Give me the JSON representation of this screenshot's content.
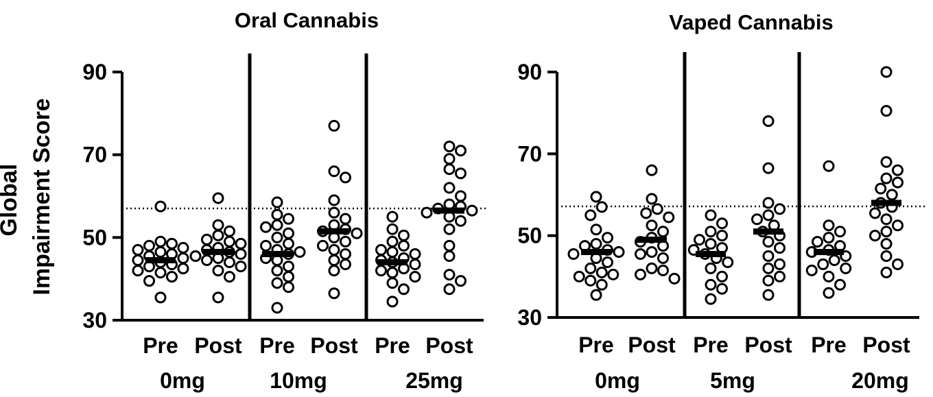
{
  "ylabel_lines": [
    "Global",
    "Impairment Score"
  ],
  "chart_data": [
    {
      "type": "scatter",
      "title": "Oral Cannabis",
      "ylim": [
        30,
        90
      ],
      "yticks": [
        30,
        50,
        70,
        90
      ],
      "reference_line": 57,
      "categories": [
        "Pre",
        "Post",
        "Pre",
        "Post",
        "Pre",
        "Post"
      ],
      "dose_labels": [
        "0mg",
        "10mg",
        "25mg"
      ],
      "series": [
        {
          "values": [
            57.5,
            49,
            48.5,
            48,
            47.5,
            47,
            46.5,
            46,
            45.5,
            45,
            44.5,
            44,
            43.5,
            43,
            42.5,
            42,
            41.5,
            40.5,
            39.5,
            35.5
          ],
          "mean": 44.5
        },
        {
          "values": [
            59.5,
            53,
            51.5,
            50.5,
            49.5,
            49,
            48.5,
            47.5,
            47,
            46.5,
            46,
            45.5,
            45,
            44.5,
            44,
            43,
            42,
            40.5,
            35.5
          ],
          "mean": 46.5
        },
        {
          "values": [
            58.5,
            55.5,
            54.5,
            53,
            52.5,
            51,
            50,
            48.5,
            48,
            47,
            46.5,
            46,
            45,
            44.5,
            43,
            42,
            40.5,
            39,
            38,
            33
          ],
          "mean": 46
        },
        {
          "values": [
            77,
            66,
            64.5,
            59,
            56,
            54.5,
            53,
            52,
            51.5,
            51,
            50,
            49,
            48,
            47,
            46,
            44.5,
            43.5,
            42,
            36.5
          ],
          "mean": 51.5
        },
        {
          "values": [
            55,
            52,
            50.5,
            49,
            48,
            47,
            46.5,
            46,
            45,
            44.5,
            44,
            43.5,
            42.5,
            42,
            41.5,
            40.5,
            39,
            37.5,
            34.5
          ],
          "mean": 44
        },
        {
          "values": [
            72,
            71,
            69,
            66.5,
            65.5,
            62,
            60,
            58,
            57.5,
            57,
            56.5,
            56,
            55,
            54,
            52,
            48,
            45.5,
            41,
            39.5,
            37.5
          ],
          "mean": 56.5
        }
      ]
    },
    {
      "type": "scatter",
      "title": "Vaped Cannabis",
      "ylim": [
        30,
        90
      ],
      "yticks": [
        30,
        50,
        70,
        90
      ],
      "reference_line": 57,
      "categories": [
        "Pre",
        "Post",
        "Pre",
        "Post",
        "Pre",
        "Post"
      ],
      "dose_labels": [
        "0mg",
        "5mg",
        "20mg"
      ],
      "series": [
        {
          "values": [
            59.5,
            57,
            55,
            51.5,
            49.5,
            48,
            47.5,
            46.5,
            46,
            45.5,
            44.5,
            43.5,
            42,
            41,
            40.5,
            40,
            39,
            38,
            35.5
          ],
          "mean": 46
        },
        {
          "values": [
            66,
            59,
            56.5,
            55.5,
            54.5,
            52.5,
            51,
            49.5,
            48.5,
            47.5,
            46,
            45.5,
            44.5,
            42,
            41.5,
            40.5,
            39.5
          ],
          "mean": 49
        },
        {
          "values": [
            55,
            53,
            51,
            50,
            49,
            48,
            47,
            46.5,
            45.5,
            44.5,
            43.5,
            42,
            40,
            38,
            37,
            34.5
          ],
          "mean": 45.5
        },
        {
          "values": [
            78,
            66.5,
            58,
            56.5,
            55,
            54,
            52.5,
            51,
            50,
            48.5,
            47,
            45,
            43,
            42,
            40,
            39,
            35.5
          ],
          "mean": 51
        },
        {
          "values": [
            67,
            52.5,
            51,
            49.5,
            48.5,
            47.5,
            46.5,
            46,
            45,
            44,
            43,
            42,
            41.5,
            40,
            38,
            36
          ],
          "mean": 46
        },
        {
          "values": [
            90,
            80.5,
            68,
            66,
            64,
            63,
            61.5,
            60,
            58,
            57,
            55.5,
            54,
            52.5,
            51,
            50,
            48,
            45,
            43,
            41
          ],
          "mean": 58
        }
      ]
    }
  ]
}
